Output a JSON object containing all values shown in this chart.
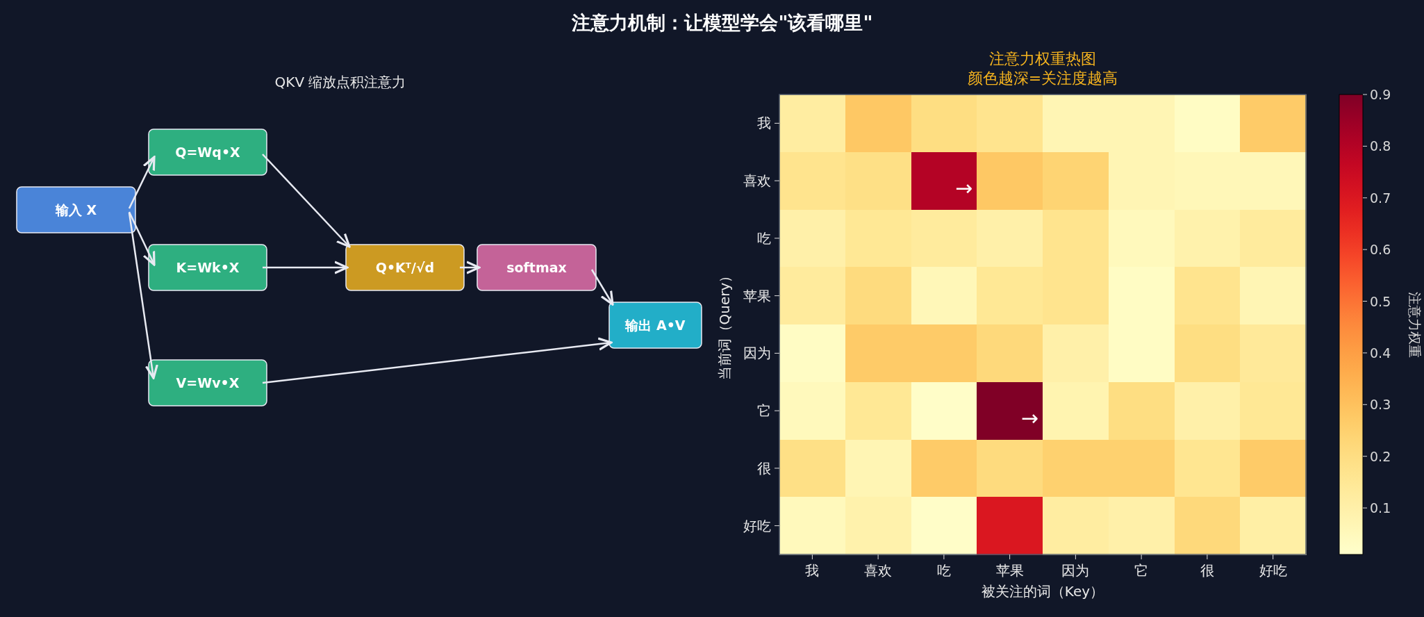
{
  "chart_data": [
    {
      "type": "other",
      "title": "注意力机制：让模型学会\"该看哪里\"",
      "subtitle": "QKV 缩放点积注意力",
      "annotations": [
        "输入 X",
        "Q=Wq•X",
        "K=Wk•X",
        "V=Wv•X",
        "Q•Kᵀ/√d",
        "softmax",
        "输出 A•V"
      ],
      "colors": [
        "#4a84d8",
        "#2eaf80",
        "#2eaf80",
        "#2eaf80",
        "#cc9a22",
        "#c46398",
        "#22aec8"
      ]
    },
    {
      "type": "heatmap",
      "title": "注意力权重热图",
      "subtitle": "颜色越深=关注度越高",
      "xlabel": "被关注的词（Key）",
      "ylabel": "当前词（Query）",
      "clabel": "注意力权重",
      "categories": [
        "我",
        "喜欢",
        "吃",
        "苹果",
        "因为",
        "它",
        "很",
        "好吃"
      ],
      "y_categories": [
        "我",
        "喜欢",
        "吃",
        "苹果",
        "因为",
        "它",
        "很",
        "好吃"
      ],
      "cells": [
        [
          0.12,
          0.28,
          0.2,
          0.17,
          0.07,
          0.07,
          0.03,
          0.27
        ],
        [
          0.17,
          0.19,
          0.8,
          0.28,
          0.24,
          0.07,
          0.06,
          0.06
        ],
        [
          0.1,
          0.15,
          0.13,
          0.1,
          0.17,
          0.05,
          0.09,
          0.13
        ],
        [
          0.13,
          0.21,
          0.06,
          0.15,
          0.17,
          0.03,
          0.17,
          0.07
        ],
        [
          0.03,
          0.27,
          0.27,
          0.22,
          0.1,
          0.03,
          0.2,
          0.14
        ],
        [
          0.05,
          0.15,
          0.02,
          0.9,
          0.08,
          0.2,
          0.1,
          0.15
        ],
        [
          0.19,
          0.07,
          0.27,
          0.21,
          0.25,
          0.25,
          0.16,
          0.27
        ],
        [
          0.05,
          0.09,
          0.02,
          0.7,
          0.12,
          0.1,
          0.22,
          0.11
        ]
      ],
      "clim": [
        0.01,
        0.9
      ],
      "cticks": [
        0.1,
        0.2,
        0.3,
        0.4,
        0.5,
        0.6,
        0.7,
        0.8,
        0.9
      ],
      "annotations": [
        "→",
        "→"
      ]
    }
  ]
}
